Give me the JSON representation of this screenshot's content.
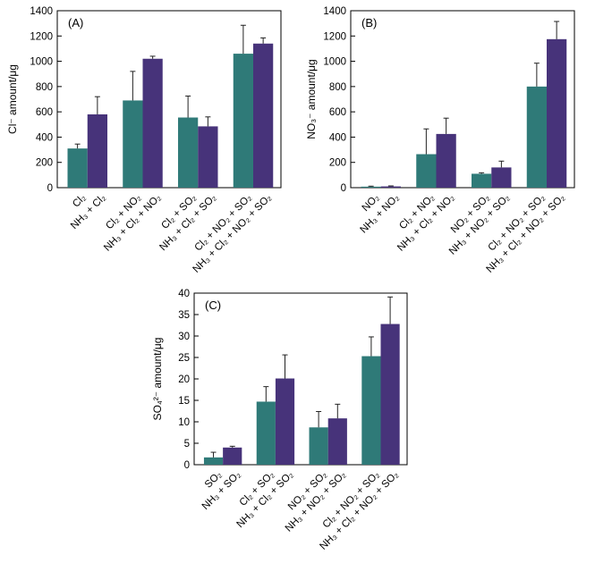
{
  "colors": {
    "series1": "#2f7a78",
    "series2": "#47337a"
  },
  "chart_data": [
    {
      "type": "bar",
      "title": "(A)",
      "ylabel": "Cl⁻ amount/μg",
      "ylim": [
        0,
        1400
      ],
      "yticks": [
        0,
        200,
        400,
        600,
        800,
        1000,
        1200,
        1400
      ],
      "grid": false,
      "categories": [
        "Cl₂",
        "NH₃ + Cl₂",
        "Cl₂ + NO₂",
        "NH₃ + Cl₂ + NO₂",
        "Cl₂ + SO₂",
        "NH₃ + Cl₂ + SO₂",
        "Cl₂ + NO₂ + SO₂",
        "NH₃ + Cl₂ + NO₂ + SO₂"
      ],
      "values": [
        310,
        580,
        690,
        1020,
        555,
        485,
        1060,
        1140
      ],
      "errors": [
        35,
        140,
        230,
        20,
        170,
        75,
        225,
        45
      ]
    },
    {
      "type": "bar",
      "title": "(B)",
      "ylabel": "NO₃⁻ amount/μg",
      "ylim": [
        0,
        1400
      ],
      "yticks": [
        0,
        200,
        400,
        600,
        800,
        1000,
        1200,
        1400
      ],
      "grid": false,
      "categories": [
        "NO₂",
        "NH₃ + NO₂",
        "Cl₂ + NO₂",
        "NH₃ + Cl₂ + NO₂",
        "NO₂ + SO₂",
        "NH₃ + NO₂ + SO₂",
        "Cl₂ + NO₂ + SO₂",
        "NH₃ + Cl₂ + NO₂ + SO₂"
      ],
      "values": [
        8,
        10,
        265,
        425,
        110,
        160,
        800,
        1175
      ],
      "errors": [
        4,
        4,
        200,
        125,
        8,
        50,
        185,
        140
      ]
    },
    {
      "type": "bar",
      "title": "(C)",
      "ylabel": "SO₄²⁻ amount/μg",
      "ylim": [
        0,
        40
      ],
      "yticks": [
        0,
        5,
        10,
        15,
        20,
        25,
        30,
        35,
        40
      ],
      "grid": false,
      "categories": [
        "SO₂",
        "NH₃ + SO₂",
        "Cl₂ + SO₂",
        "NH₃ + Cl₂ + SO₂",
        "NO₂ + SO₂",
        "NH₃ + NO₂ + SO₂",
        "Cl₂ + NO₂ + SO₂",
        "NH₃ + Cl₂ + NO₂ + SO₂"
      ],
      "values": [
        1.7,
        4.0,
        14.7,
        20.1,
        8.7,
        10.8,
        25.3,
        32.8
      ],
      "errors": [
        1.2,
        0.3,
        3.5,
        5.5,
        3.7,
        3.3,
        4.5,
        6.3
      ]
    }
  ]
}
